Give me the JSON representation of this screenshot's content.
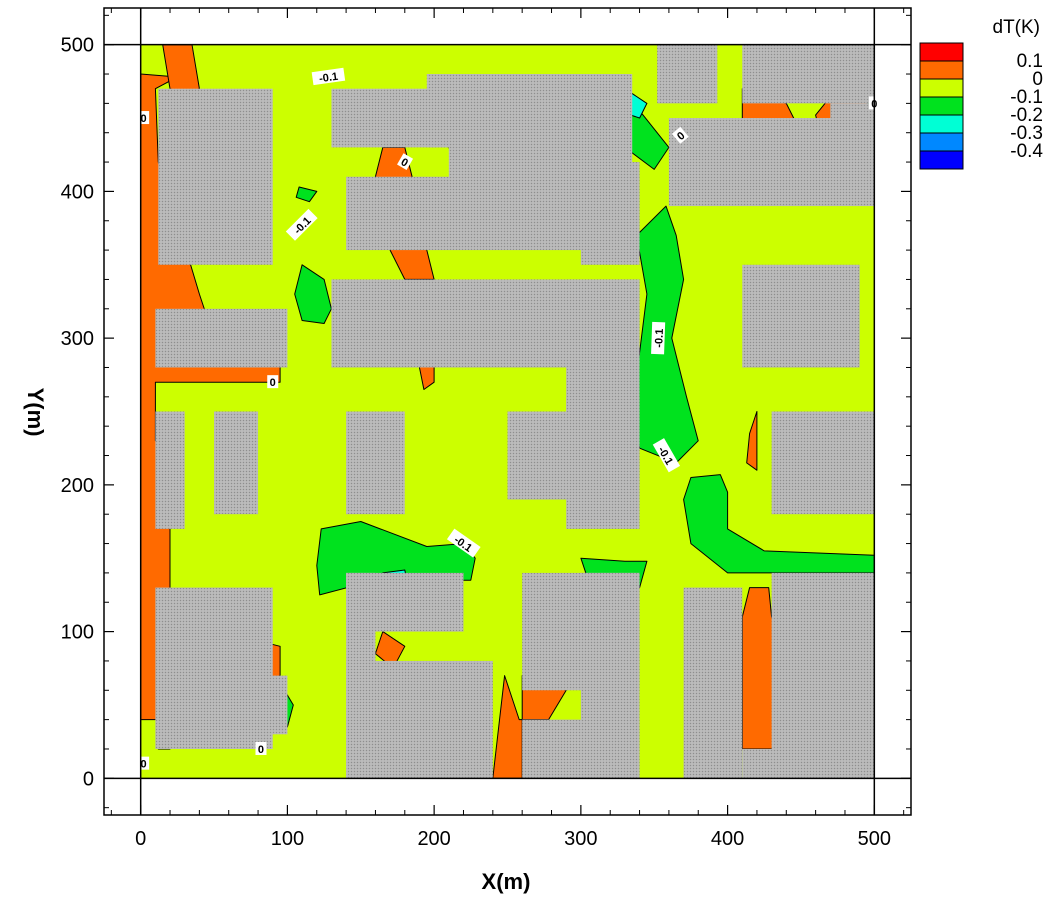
{
  "chart_data": {
    "type": "heatmap",
    "xlabel": "X(m)",
    "ylabel": "Y(m)",
    "xlim": [
      -25,
      525
    ],
    "ylim": [
      -25,
      525
    ],
    "xticks": [
      0,
      100,
      200,
      300,
      400,
      500
    ],
    "yticks": [
      0,
      100,
      200,
      300,
      400,
      500
    ],
    "legend": {
      "title": "dT(K)",
      "position": "top-right",
      "levels": [
        {
          "label": "0.1",
          "color": "#ff0000"
        },
        {
          "label": "0",
          "color": "#ff6a00"
        },
        {
          "label": "-0.1",
          "color": "#ccff00"
        },
        {
          "label": "-0.2",
          "color": "#00e21e"
        },
        {
          "label": "-0.3",
          "color": "#00ffd5"
        },
        {
          "label": "-0.4",
          "color": "#0088ff"
        },
        {
          "label": "",
          "color": "#0000ff"
        }
      ]
    },
    "field_color": "#ccff00",
    "regions": [
      {
        "level": "0",
        "color": "#ff6a00",
        "points": [
          [
            0,
            480
          ],
          [
            0,
            40
          ],
          [
            12,
            40
          ],
          [
            12,
            20
          ],
          [
            20,
            20
          ],
          [
            20,
            230
          ],
          [
            10,
            230
          ],
          [
            10,
            270
          ],
          [
            95,
            270
          ],
          [
            95,
            290
          ],
          [
            50,
            300
          ],
          [
            40,
            330
          ],
          [
            25,
            380
          ],
          [
            12,
            420
          ],
          [
            10,
            470
          ],
          [
            25,
            478
          ]
        ]
      },
      {
        "level": "0",
        "color": "#ff6a00",
        "points": [
          [
            25,
            60
          ],
          [
            30,
            90
          ],
          [
            55,
            90
          ],
          [
            75,
            95
          ],
          [
            95,
            90
          ],
          [
            95,
            70
          ],
          [
            60,
            50
          ],
          [
            35,
            48
          ]
        ]
      },
      {
        "level": "0",
        "color": "#ff6a00",
        "points": [
          [
            35,
            500
          ],
          [
            40,
            470
          ],
          [
            30,
            465
          ],
          [
            20,
            470
          ],
          [
            15,
            500
          ]
        ]
      },
      {
        "level": "0",
        "color": "#ff6a00",
        "points": [
          [
            165,
            430
          ],
          [
            180,
            430
          ],
          [
            185,
            410
          ],
          [
            170,
            400
          ],
          [
            160,
            410
          ]
        ]
      },
      {
        "level": "0",
        "color": "#ff6a00",
        "points": [
          [
            205,
            440
          ],
          [
            270,
            435
          ],
          [
            290,
            425
          ],
          [
            260,
            410
          ],
          [
            215,
            420
          ]
        ]
      },
      {
        "level": "0",
        "color": "#ff6a00",
        "points": [
          [
            175,
            370
          ],
          [
            195,
            360
          ],
          [
            200,
            340
          ],
          [
            180,
            340
          ],
          [
            170,
            360
          ]
        ]
      },
      {
        "level": "0",
        "color": "#ff6a00",
        "points": [
          [
            188,
            290
          ],
          [
            200,
            295
          ],
          [
            200,
            270
          ],
          [
            193,
            265
          ]
        ]
      },
      {
        "level": "0",
        "color": "#ff6a00",
        "points": [
          [
            240,
            0
          ],
          [
            260,
            0
          ],
          [
            260,
            70
          ],
          [
            290,
            60
          ],
          [
            278,
            40
          ],
          [
            258,
            40
          ],
          [
            248,
            70
          ]
        ]
      },
      {
        "level": "0",
        "color": "#ff6a00",
        "points": [
          [
            165,
            100
          ],
          [
            180,
            90
          ],
          [
            172,
            75
          ],
          [
            160,
            85
          ]
        ]
      },
      {
        "level": "0",
        "color": "#ff6a00",
        "points": [
          [
            410,
            20
          ],
          [
            430,
            20
          ],
          [
            440,
            30
          ],
          [
            445,
            70
          ],
          [
            440,
            90
          ],
          [
            430,
            110
          ],
          [
            428,
            130
          ],
          [
            415,
            130
          ],
          [
            410,
            110
          ]
        ]
      },
      {
        "level": "0",
        "color": "#ff6a00",
        "points": [
          [
            410,
            470
          ],
          [
            440,
            460
          ],
          [
            450,
            440
          ],
          [
            445,
            435
          ],
          [
            410,
            435
          ]
        ]
      },
      {
        "level": "0",
        "color": "#ff6a00",
        "points": [
          [
            463,
            440
          ],
          [
            495,
            440
          ],
          [
            500,
            460
          ],
          [
            485,
            465
          ],
          [
            468,
            462
          ],
          [
            460,
            452
          ]
        ]
      },
      {
        "level": "0",
        "color": "#ff6a00",
        "points": [
          [
            415,
            235
          ],
          [
            420,
            250
          ],
          [
            420,
            210
          ],
          [
            413,
            215
          ]
        ]
      },
      {
        "level": "-0.1",
        "color": "#00e21e",
        "points": [
          [
            123,
            170
          ],
          [
            150,
            175
          ],
          [
            195,
            158
          ],
          [
            220,
            160
          ],
          [
            228,
            150
          ],
          [
            225,
            135
          ],
          [
            160,
            135
          ],
          [
            122,
            125
          ],
          [
            120,
            145
          ]
        ]
      },
      {
        "level": "-0.1",
        "color": "#00e21e",
        "points": [
          [
            358,
            390
          ],
          [
            365,
            370
          ],
          [
            370,
            340
          ],
          [
            362,
            300
          ],
          [
            372,
            260
          ],
          [
            380,
            230
          ],
          [
            365,
            215
          ],
          [
            340,
            225
          ],
          [
            335,
            250
          ],
          [
            345,
            330
          ],
          [
            338,
            370
          ]
        ]
      },
      {
        "level": "-0.1",
        "color": "#00e21e",
        "points": [
          [
            370,
            190
          ],
          [
            375,
            205
          ],
          [
            395,
            207
          ],
          [
            400,
            195
          ],
          [
            400,
            170
          ],
          [
            425,
            155
          ],
          [
            500,
            152
          ],
          [
            500,
            140
          ],
          [
            400,
            140
          ],
          [
            375,
            160
          ]
        ]
      },
      {
        "level": "-0.1",
        "color": "#00e21e",
        "points": [
          [
            110,
            350
          ],
          [
            125,
            340
          ],
          [
            130,
            320
          ],
          [
            125,
            310
          ],
          [
            110,
            312
          ],
          [
            105,
            330
          ]
        ]
      },
      {
        "level": "-0.1",
        "color": "#00e21e",
        "points": [
          [
            315,
            470
          ],
          [
            340,
            455
          ],
          [
            360,
            430
          ],
          [
            350,
            415
          ],
          [
            330,
            430
          ],
          [
            325,
            455
          ]
        ]
      },
      {
        "level": "-0.1",
        "color": "#00e21e",
        "points": [
          [
            495,
            460
          ],
          [
            505,
            470
          ],
          [
            505,
            440
          ],
          [
            485,
            450
          ]
        ]
      },
      {
        "level": "-0.1",
        "color": "#00e21e",
        "points": [
          [
            85,
            40
          ],
          [
            100,
            35
          ],
          [
            104,
            50
          ],
          [
            98,
            60
          ],
          [
            87,
            55
          ]
        ]
      },
      {
        "level": "-0.1",
        "color": "#00e21e",
        "points": [
          [
            300,
            150
          ],
          [
            330,
            148
          ],
          [
            345,
            148
          ],
          [
            340,
            130
          ],
          [
            305,
            135
          ]
        ]
      },
      {
        "level": "-0.1",
        "color": "#00e21e",
        "points": [
          [
            108,
            403
          ],
          [
            120,
            400
          ],
          [
            115,
            393
          ],
          [
            106,
            396
          ]
        ]
      },
      {
        "level": "-0.2",
        "color": "#00ffd5",
        "points": [
          [
            330,
            470
          ],
          [
            345,
            460
          ],
          [
            340,
            450
          ],
          [
            325,
            455
          ]
        ]
      },
      {
        "level": "-0.2",
        "color": "#00ffd5",
        "points": [
          [
            165,
            140
          ],
          [
            180,
            142
          ],
          [
            182,
            132
          ],
          [
            165,
            132
          ]
        ]
      }
    ],
    "buildings": [
      {
        "x": [
          12,
          90
        ],
        "y": [
          350,
          470
        ]
      },
      {
        "x": [
          130,
          210
        ],
        "y": [
          430,
          470
        ]
      },
      {
        "x": [
          195,
          330
        ],
        "y": [
          430,
          480
        ]
      },
      {
        "x": [
          210,
          335
        ],
        "y": [
          390,
          480
        ]
      },
      {
        "x": [
          140,
          340
        ],
        "y": [
          360,
          410
        ]
      },
      {
        "x": [
          300,
          340
        ],
        "y": [
          350,
          420
        ]
      },
      {
        "x": [
          352,
          393
        ],
        "y": [
          460,
          500
        ]
      },
      {
        "x": [
          410,
          500
        ],
        "y": [
          460,
          500
        ]
      },
      {
        "x": [
          360,
          500
        ],
        "y": [
          390,
          450
        ]
      },
      {
        "x": [
          470,
          500
        ],
        "y": [
          400,
          460
        ]
      },
      {
        "x": [
          130,
          340
        ],
        "y": [
          280,
          340
        ]
      },
      {
        "x": [
          290,
          340
        ],
        "y": [
          200,
          340
        ]
      },
      {
        "x": [
          10,
          100
        ],
        "y": [
          280,
          320
        ]
      },
      {
        "x": [
          410,
          490
        ],
        "y": [
          280,
          350
        ]
      },
      {
        "x": [
          10,
          30
        ],
        "y": [
          170,
          250
        ]
      },
      {
        "x": [
          50,
          80
        ],
        "y": [
          180,
          250
        ]
      },
      {
        "x": [
          140,
          180
        ],
        "y": [
          180,
          250
        ]
      },
      {
        "x": [
          250,
          300
        ],
        "y": [
          190,
          250
        ]
      },
      {
        "x": [
          290,
          340
        ],
        "y": [
          170,
          260
        ]
      },
      {
        "x": [
          430,
          500
        ],
        "y": [
          180,
          250
        ]
      },
      {
        "x": [
          10,
          90
        ],
        "y": [
          20,
          130
        ]
      },
      {
        "x": [
          40,
          100
        ],
        "y": [
          30,
          70
        ]
      },
      {
        "x": [
          140,
          220
        ],
        "y": [
          100,
          140
        ]
      },
      {
        "x": [
          140,
          240
        ],
        "y": [
          0,
          80
        ]
      },
      {
        "x": [
          140,
          160
        ],
        "y": [
          0,
          140
        ]
      },
      {
        "x": [
          260,
          340
        ],
        "y": [
          60,
          140
        ]
      },
      {
        "x": [
          260,
          340
        ],
        "y": [
          0,
          40
        ]
      },
      {
        "x": [
          300,
          340
        ],
        "y": [
          0,
          140
        ]
      },
      {
        "x": [
          370,
          410
        ],
        "y": [
          0,
          130
        ]
      },
      {
        "x": [
          430,
          500
        ],
        "y": [
          0,
          140
        ]
      },
      {
        "x": [
          410,
          500
        ],
        "y": [
          0,
          20
        ]
      }
    ],
    "contour_labels": [
      {
        "text": "-0.1",
        "x": 128,
        "y": 478,
        "rotate": -8
      },
      {
        "text": "0",
        "x": 2,
        "y": 450,
        "rotate": 0
      },
      {
        "text": "0",
        "x": 180,
        "y": 420,
        "rotate": 30
      },
      {
        "text": "0",
        "x": 368,
        "y": 438,
        "rotate": -40
      },
      {
        "text": "0",
        "x": 500,
        "y": 460,
        "rotate": 0
      },
      {
        "text": "-0.1",
        "x": 110,
        "y": 377,
        "rotate": -45
      },
      {
        "text": "-0.1",
        "x": 353,
        "y": 300,
        "rotate": -88
      },
      {
        "text": "0",
        "x": 90,
        "y": 270,
        "rotate": 0
      },
      {
        "text": "-0.1",
        "x": 358,
        "y": 220,
        "rotate": 60
      },
      {
        "text": "-0.1",
        "x": 220,
        "y": 160,
        "rotate": 35
      },
      {
        "text": "0",
        "x": 82,
        "y": 20,
        "rotate": 0
      },
      {
        "text": "0",
        "x": 2,
        "y": 10,
        "rotate": 0
      }
    ]
  }
}
